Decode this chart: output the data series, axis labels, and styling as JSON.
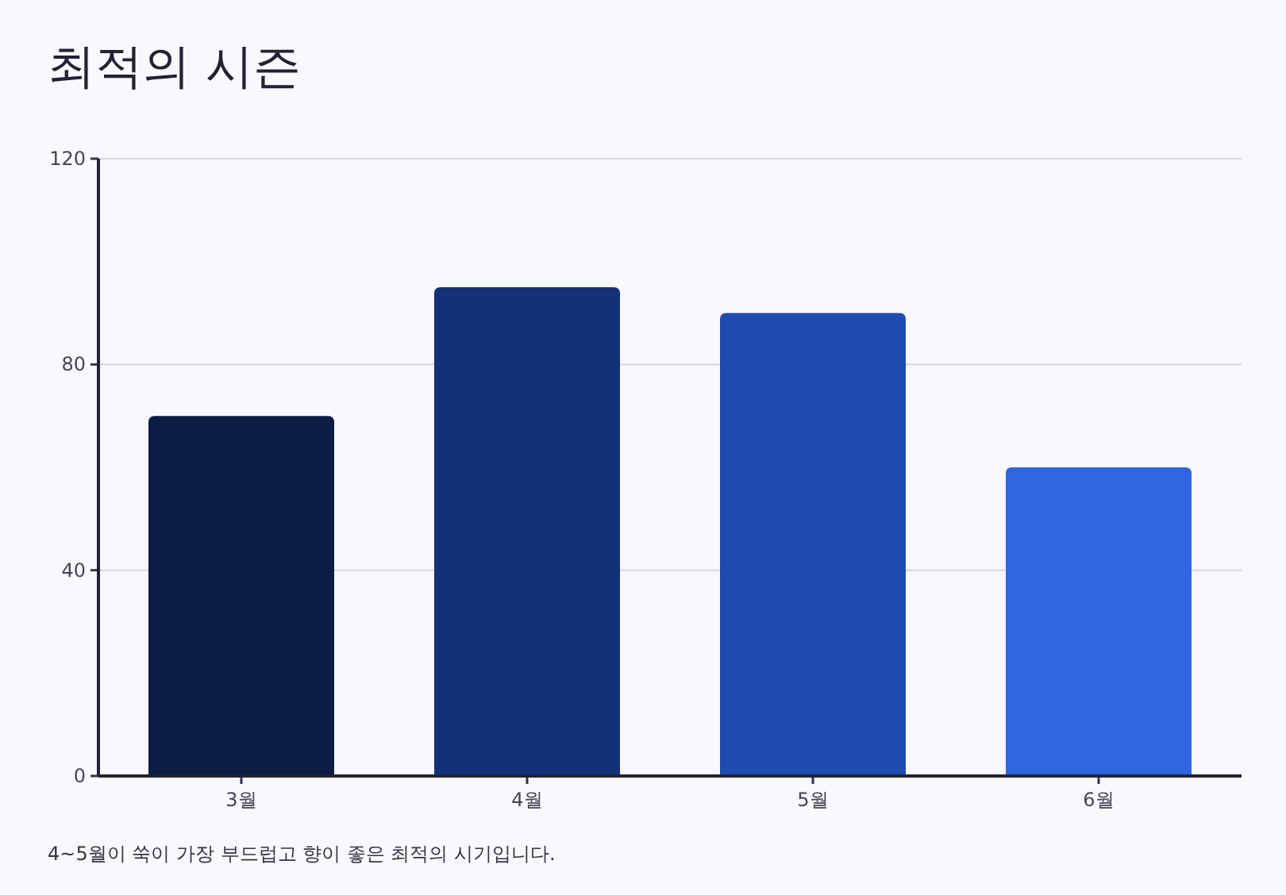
{
  "chart_data": {
    "type": "bar",
    "title": "최적의 시즌",
    "categories": [
      "3월",
      "4월",
      "5월",
      "6월"
    ],
    "values": [
      70,
      95,
      90,
      60
    ],
    "colors": [
      "#0b1d45",
      "#133178",
      "#1e4bb0",
      "#3065e0"
    ],
    "ylim": [
      0,
      120
    ],
    "yticks": [
      0,
      40,
      80,
      120
    ],
    "grid": "y",
    "annotations": [
      "4~5월이 쑥이 가장 부드럽고 향이 좋은 최적의 시기입니다."
    ]
  }
}
